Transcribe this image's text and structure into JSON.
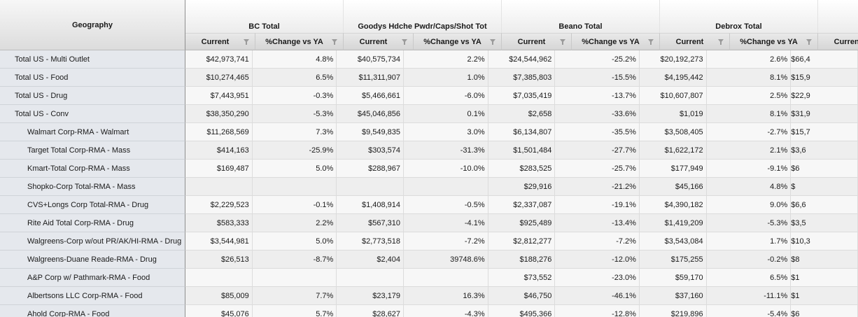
{
  "corner_label": "Geography",
  "groups": [
    "BC Total",
    "Goodys Hdche Pwdr/Caps/Shot Tot",
    "Beano Total",
    "Debrox Total",
    ""
  ],
  "subheaders": [
    "Current",
    "%Change vs YA",
    "Current",
    "%Change vs YA",
    "Current",
    "%Change vs YA",
    "Current",
    "%Change vs YA",
    "Current"
  ],
  "rows": [
    {
      "geo": "Total US - Multi Outlet",
      "indent": false,
      "values": [
        "$42,973,741",
        "4.8%",
        "$40,575,734",
        "2.2%",
        "$24,544,962",
        "-25.2%",
        "$20,192,273",
        "2.6%",
        "$66,4"
      ]
    },
    {
      "geo": "Total US - Food",
      "indent": false,
      "values": [
        "$10,274,465",
        "6.5%",
        "$11,311,907",
        "1.0%",
        "$7,385,803",
        "-15.5%",
        "$4,195,442",
        "8.1%",
        "$15,9"
      ]
    },
    {
      "geo": "Total US - Drug",
      "indent": false,
      "values": [
        "$7,443,951",
        "-0.3%",
        "$5,466,661",
        "-6.0%",
        "$7,035,419",
        "-13.7%",
        "$10,607,807",
        "2.5%",
        "$22,9"
      ]
    },
    {
      "geo": "Total US - Conv",
      "indent": false,
      "values": [
        "$38,350,290",
        "-5.3%",
        "$45,046,856",
        "0.1%",
        "$2,658",
        "-33.6%",
        "$1,019",
        "8.1%",
        "$31,9"
      ]
    },
    {
      "geo": "Walmart Corp-RMA - Walmart",
      "indent": true,
      "values": [
        "$11,268,569",
        "7.3%",
        "$9,549,835",
        "3.0%",
        "$6,134,807",
        "-35.5%",
        "$3,508,405",
        "-2.7%",
        "$15,7"
      ]
    },
    {
      "geo": "Target Total Corp-RMA - Mass",
      "indent": true,
      "values": [
        "$414,163",
        "-25.9%",
        "$303,574",
        "-31.3%",
        "$1,501,484",
        "-27.7%",
        "$1,622,172",
        "2.1%",
        "$3,6"
      ]
    },
    {
      "geo": "Kmart-Total Corp-RMA - Mass",
      "indent": true,
      "values": [
        "$169,487",
        "5.0%",
        "$288,967",
        "-10.0%",
        "$283,525",
        "-25.7%",
        "$177,949",
        "-9.1%",
        "$6"
      ]
    },
    {
      "geo": "Shopko-Corp Total-RMA - Mass",
      "indent": true,
      "values": [
        "",
        "",
        "",
        "",
        "$29,916",
        "-21.2%",
        "$45,166",
        "4.8%",
        "$"
      ]
    },
    {
      "geo": "CVS+Longs Corp Total-RMA - Drug",
      "indent": true,
      "values": [
        "$2,229,523",
        "-0.1%",
        "$1,408,914",
        "-0.5%",
        "$2,337,087",
        "-19.1%",
        "$4,390,182",
        "9.0%",
        "$6,6"
      ]
    },
    {
      "geo": "Rite Aid Total Corp-RMA - Drug",
      "indent": true,
      "values": [
        "$583,333",
        "2.2%",
        "$567,310",
        "-4.1%",
        "$925,489",
        "-13.4%",
        "$1,419,209",
        "-5.3%",
        "$3,5"
      ]
    },
    {
      "geo": "Walgreens-Corp w/out PR/AK/HI-RMA - Drug",
      "indent": true,
      "values": [
        "$3,544,981",
        "5.0%",
        "$2,773,518",
        "-7.2%",
        "$2,812,277",
        "-7.2%",
        "$3,543,084",
        "1.7%",
        "$10,3"
      ]
    },
    {
      "geo": "Walgreens-Duane Reade-RMA - Drug",
      "indent": true,
      "values": [
        "$26,513",
        "-8.7%",
        "$2,404",
        "39748.6%",
        "$188,276",
        "-12.0%",
        "$175,255",
        "-0.2%",
        "$8"
      ]
    },
    {
      "geo": "A&P Corp w/ Pathmark-RMA - Food",
      "indent": true,
      "values": [
        "",
        "",
        "",
        "",
        "$73,552",
        "-23.0%",
        "$59,170",
        "6.5%",
        "$1"
      ]
    },
    {
      "geo": "Albertsons LLC Corp-RMA - Food",
      "indent": true,
      "values": [
        "$85,009",
        "7.7%",
        "$23,179",
        "16.3%",
        "$46,750",
        "-46.1%",
        "$37,160",
        "-11.1%",
        "$1"
      ]
    },
    {
      "geo": "Ahold Corp-RMA - Food",
      "indent": true,
      "values": [
        "$45,076",
        "5.7%",
        "$28,627",
        "-4.3%",
        "$495,366",
        "-12.8%",
        "$219,896",
        "-5.4%",
        "$6"
      ]
    }
  ]
}
